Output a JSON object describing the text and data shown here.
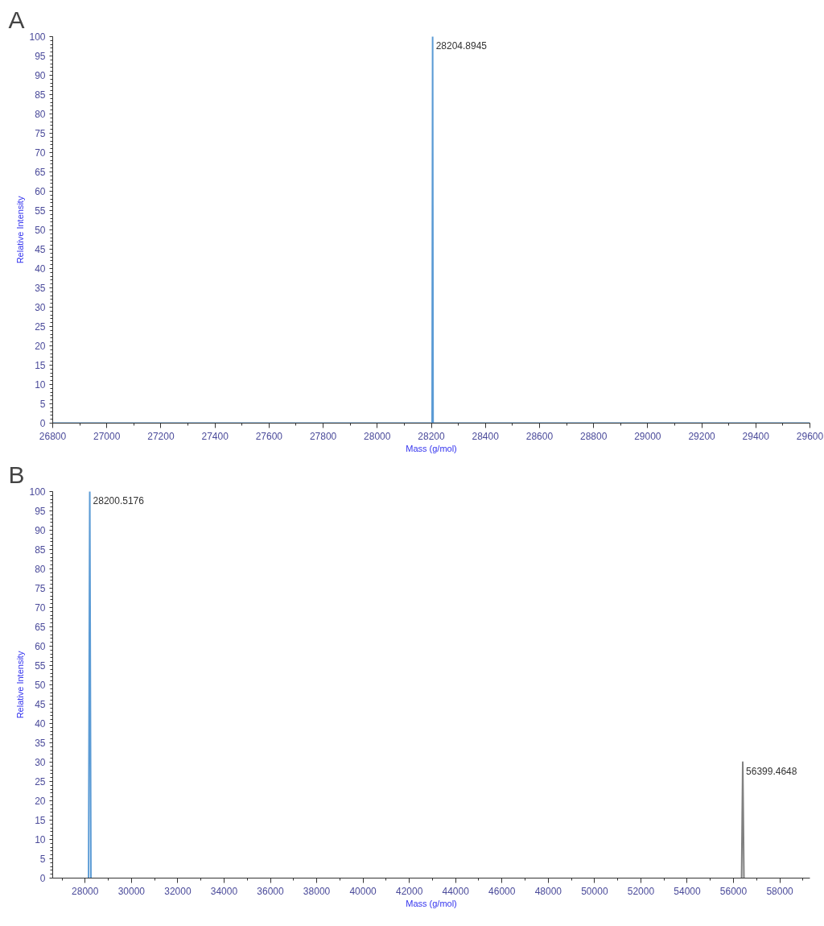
{
  "chart_data": [
    {
      "type": "line",
      "title": "A",
      "xlabel": "Mass (g/mol)",
      "ylabel": "Relative Intensity",
      "marker": "none",
      "line_style": "solid",
      "grid": false,
      "xlim": [
        26800,
        29600
      ],
      "xticks": [
        26800,
        27000,
        27200,
        27400,
        27600,
        27800,
        28000,
        28200,
        28400,
        28600,
        28800,
        29000,
        29200,
        29400,
        29600
      ],
      "ylim": [
        0,
        100
      ],
      "yticks": [
        0,
        5,
        10,
        15,
        20,
        25,
        30,
        35,
        40,
        45,
        50,
        55,
        60,
        65,
        70,
        75,
        80,
        85,
        90,
        95,
        100
      ],
      "series": [
        {
          "color": "#5b9bd5",
          "x": [
            26800,
            28203,
            28204.8945,
            28206.5,
            29600
          ],
          "values": [
            0,
            0,
            100,
            0,
            0
          ]
        }
      ],
      "annotations": [
        {
          "text": "28204.8945",
          "x": 28204.8945,
          "y": 100
        }
      ]
    },
    {
      "type": "line",
      "title": "B",
      "xlabel": "Mass (g/mol)",
      "ylabel": "Relative Intensity",
      "marker": "none",
      "line_style": "solid",
      "grid": false,
      "xlim": [
        26600,
        59300
      ],
      "xticks": [
        28000,
        30000,
        32000,
        34000,
        36000,
        38000,
        40000,
        42000,
        44000,
        46000,
        48000,
        50000,
        52000,
        54000,
        56000,
        58000
      ],
      "ylim": [
        0,
        100
      ],
      "yticks": [
        0,
        5,
        10,
        15,
        20,
        25,
        30,
        35,
        40,
        45,
        50,
        55,
        60,
        65,
        70,
        75,
        80,
        85,
        90,
        95,
        100
      ],
      "series": [
        {
          "color": "#5b9bd5",
          "x": [
            28150,
            28200.5176,
            28250
          ],
          "values": [
            0,
            100,
            0
          ]
        },
        {
          "color": "#808080",
          "x": [
            56350,
            56399.4648,
            56450
          ],
          "values": [
            0,
            30,
            0
          ]
        }
      ],
      "annotations": [
        {
          "text": "28200.5176",
          "x": 28200.5176,
          "y": 100
        },
        {
          "text": "56399.4648",
          "x": 56399.4648,
          "y": 30
        }
      ]
    }
  ]
}
